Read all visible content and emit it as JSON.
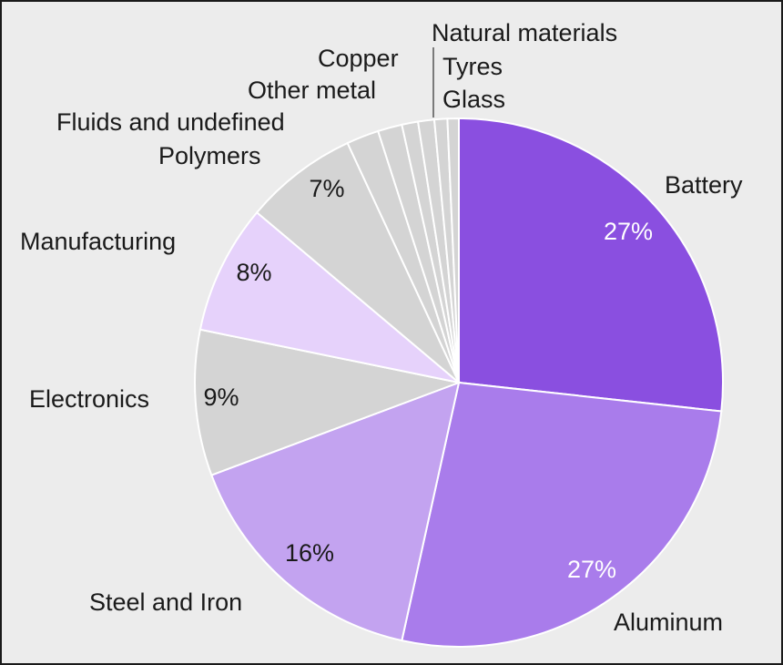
{
  "chart_data": {
    "type": "pie",
    "title": "",
    "slices": [
      {
        "label": "Battery",
        "value": 27,
        "pct_label": "27%",
        "color": "#8a4fe0",
        "pct_color": "#ffffff"
      },
      {
        "label": "Aluminum",
        "value": 27,
        "pct_label": "27%",
        "color": "#a97ceb",
        "pct_color": "#ffffff"
      },
      {
        "label": "Steel and Iron",
        "value": 16,
        "pct_label": "16%",
        "color": "#c3a3f0",
        "pct_color": "#1a1a1a"
      },
      {
        "label": "Electronics",
        "value": 9,
        "pct_label": "9%",
        "color": "#d4d4d4",
        "pct_color": "#1a1a1a"
      },
      {
        "label": "Manufacturing",
        "value": 8,
        "pct_label": "8%",
        "color": "#e6d2fb",
        "pct_color": "#1a1a1a"
      },
      {
        "label": "Polymers",
        "value": 7,
        "pct_label": "7%",
        "color": "#d4d4d4",
        "pct_color": "#1a1a1a"
      },
      {
        "label": "Fluids and undefined",
        "value": 2,
        "pct_label": "",
        "color": "#d4d4d4",
        "pct_color": "#1a1a1a"
      },
      {
        "label": "Other metal",
        "value": 1.5,
        "pct_label": "",
        "color": "#d4d4d4",
        "pct_color": "#1a1a1a"
      },
      {
        "label": "Copper",
        "value": 1,
        "pct_label": "",
        "color": "#d4d4d4",
        "pct_color": "#1a1a1a"
      },
      {
        "label": "Natural materials",
        "value": 1,
        "pct_label": "",
        "color": "#d4d4d4",
        "pct_color": "#1a1a1a"
      },
      {
        "label": "Tyres",
        "value": 0.8,
        "pct_label": "",
        "color": "#d4d4d4",
        "pct_color": "#1a1a1a"
      },
      {
        "label": "Glass",
        "value": 0.7,
        "pct_label": "",
        "color": "#d4d4d4",
        "pct_color": "#1a1a1a"
      }
    ],
    "legend": "none",
    "start": "12 o'clock, clockwise"
  }
}
